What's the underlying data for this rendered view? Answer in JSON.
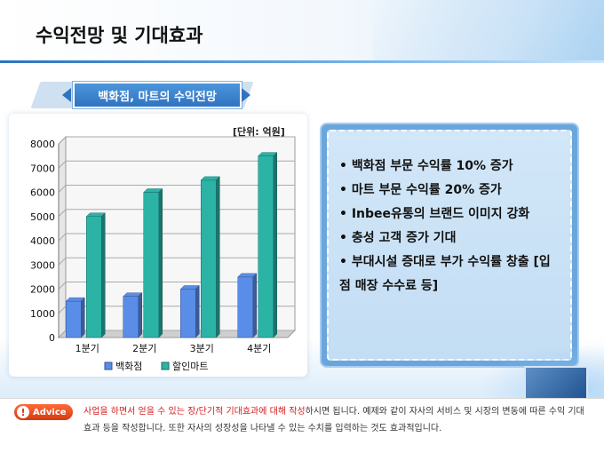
{
  "page": {
    "title": "수익전망 및 기대효과",
    "section_banner": "백화점, 마트의 수익전망"
  },
  "chart_data": {
    "type": "bar",
    "unit_label": "[단위: 억원]",
    "categories": [
      "1분기",
      "2분기",
      "3분기",
      "4분기"
    ],
    "series": [
      {
        "name": "백화점",
        "values": [
          1500,
          1700,
          2000,
          2500
        ],
        "color": "#5a8de8"
      },
      {
        "name": "할인마트",
        "values": [
          5000,
          6000,
          6500,
          7500
        ],
        "color": "#2bb3a6"
      }
    ],
    "ylim": [
      0,
      8000
    ],
    "yticks": [
      "0",
      "1000",
      "2000",
      "3000",
      "4000",
      "5000",
      "6000",
      "7000",
      "8000"
    ],
    "grid": true,
    "legend_placement": "bottom"
  },
  "info_points": [
    "• 백화점 부문 수익률 10% 증가",
    "• 마트 부문 수익률 20% 증가",
    "• Inbee유통의 브랜드 이미지 강화",
    "• 충성 고객 증가 기대",
    "• 부대시설 증대로 부가 수익률 창출 [입점 매장 수수료 등]"
  ],
  "advice": {
    "icon": "!",
    "label": "Advice",
    "red_text": "사업을 하면서 얻을 수 있는 장/단기적 기대효과에 대해 작성",
    "text": "하시면 됩니다. 예제와 같이 자사의 서비스 및 시장의 변동에 따른 수익 기대 효과 등을 작성합니다. 또한 자사의 성장성을 나타낼 수 있는 수치를 입력하는 것도 효과적입니다."
  }
}
